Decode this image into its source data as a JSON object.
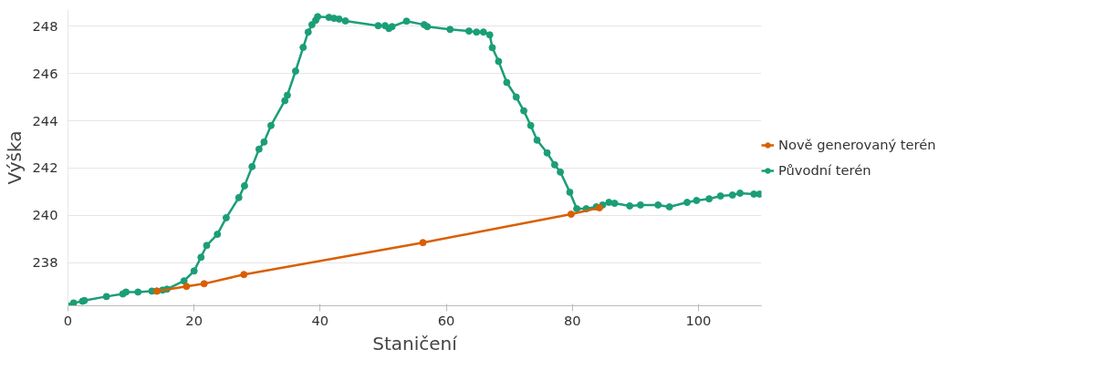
{
  "chart_data": {
    "type": "line",
    "xlabel": "Staničení",
    "ylabel": "Výška",
    "xlim": [
      0,
      110
    ],
    "ylim": [
      236.18,
      248.7
    ],
    "xticks": [
      0,
      20,
      40,
      60,
      80,
      100
    ],
    "yticks": [
      238,
      240,
      242,
      244,
      246,
      248
    ],
    "grid": "y",
    "legend": "right",
    "marker": "circle",
    "line_style": "solid",
    "series": [
      {
        "name": "Nově generovaný terén",
        "color": "#d95f02",
        "x": [
          14.1,
          18.8,
          21.6,
          27.9,
          56.3,
          79.8,
          84.3
        ],
        "values": [
          236.8,
          237.0,
          237.11,
          237.5,
          238.85,
          240.05,
          240.32
        ]
      },
      {
        "name": "Původní terén",
        "color": "#1b9e77",
        "x": [
          0,
          0.9,
          2.3,
          2.6,
          6.1,
          8.7,
          9.2,
          11.1,
          13.3,
          14.1,
          15,
          15.7,
          18.4,
          20,
          21.1,
          22,
          23.7,
          25.1,
          27.1,
          28,
          29.2,
          30.3,
          31.1,
          32.2,
          34.4,
          34.8,
          36.1,
          37.3,
          38.1,
          38.7,
          39.3,
          39.6,
          41.4,
          42.2,
          43,
          44,
          49.2,
          50.3,
          50.9,
          51.4,
          53.7,
          56.5,
          57,
          60.6,
          63.6,
          64.8,
          65.9,
          66.9,
          67.3,
          68.3,
          69.6,
          71.1,
          72.3,
          73.4,
          74.4,
          76,
          77.2,
          78.1,
          79.6,
          80.7,
          82.2,
          83.8,
          84.8,
          85.8,
          86.7,
          89.1,
          90.8,
          93.6,
          95.4,
          98.2,
          99.7,
          101.7,
          103.5,
          105.4,
          106.6,
          108.8,
          109.7
        ],
        "values": [
          236.18,
          236.3,
          236.37,
          236.4,
          236.57,
          236.68,
          236.76,
          236.76,
          236.8,
          236.8,
          236.84,
          236.88,
          237.23,
          237.65,
          238.23,
          238.73,
          239.2,
          239.9,
          240.75,
          241.25,
          242.06,
          242.8,
          243.1,
          243.8,
          244.85,
          245.08,
          246.1,
          247.1,
          247.75,
          248.06,
          248.25,
          248.4,
          248.37,
          248.33,
          248.3,
          248.22,
          248.02,
          248.02,
          247.9,
          247.98,
          248.21,
          248.06,
          247.98,
          247.86,
          247.79,
          247.75,
          247.75,
          247.63,
          247.09,
          246.51,
          245.62,
          245,
          244.42,
          243.8,
          243.18,
          242.64,
          242.14,
          241.83,
          240.98,
          240.28,
          240.28,
          240.36,
          240.44,
          240.55,
          240.51,
          240.4,
          240.44,
          240.44,
          240.36,
          240.55,
          240.63,
          240.7,
          240.82,
          240.86,
          240.94,
          240.9,
          240.9
        ]
      }
    ]
  }
}
